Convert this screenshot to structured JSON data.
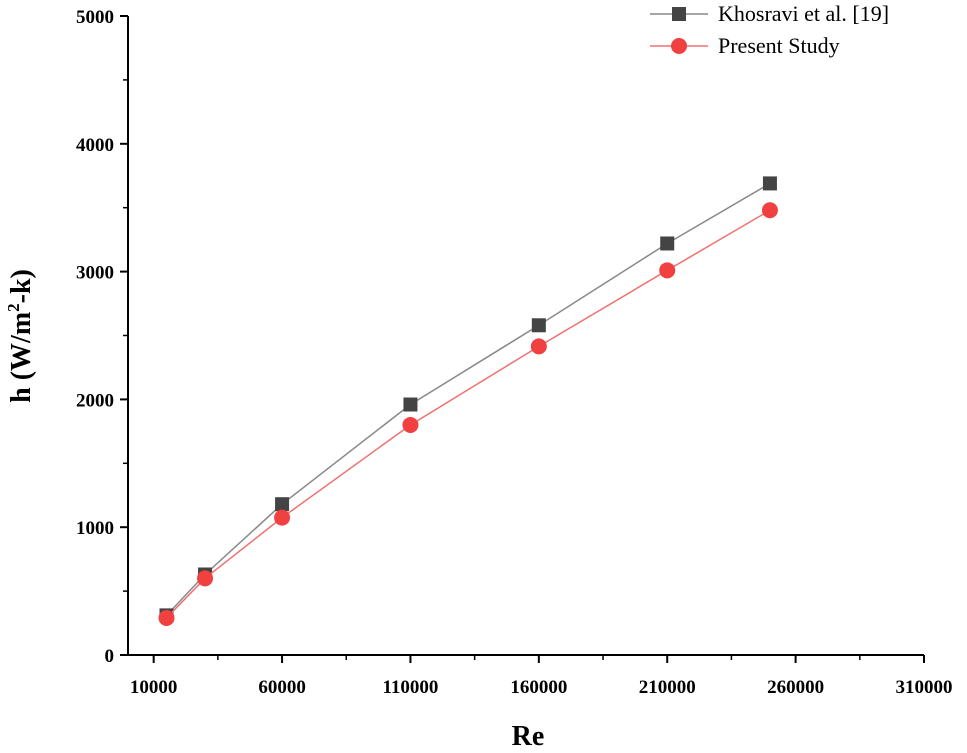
{
  "chart_data": {
    "type": "line",
    "title": "",
    "xlabel": "Re",
    "ylabel": {
      "base": "h (W/m",
      "superscript": "2",
      "suffix": "-k)"
    },
    "xlim": [
      0,
      310000
    ],
    "ylim": [
      0,
      5000
    ],
    "xticks": [
      10000,
      60000,
      110000,
      160000,
      210000,
      260000,
      310000
    ],
    "xtick_labels": [
      "10000",
      "60000",
      "110000",
      "160000",
      "210000",
      "260000",
      "310000"
    ],
    "yticks": [
      0,
      1000,
      2000,
      3000,
      4000,
      5000
    ],
    "ytick_labels": [
      "0",
      "1000",
      "2000",
      "3000",
      "4000",
      "5000"
    ],
    "grid": false,
    "legend_position": "top-right",
    "series": [
      {
        "name": "Khosravi et al. [19]",
        "marker": "square",
        "color": "#444444",
        "line_color": "#888888",
        "x": [
          15000,
          30000,
          60000,
          110000,
          160000,
          210000,
          250000
        ],
        "y": [
          310,
          630,
          1180,
          1960,
          2580,
          3220,
          3690
        ]
      },
      {
        "name": "Present Study",
        "marker": "circle",
        "color": "#f04040",
        "line_color": "#f07070",
        "x": [
          15000,
          30000,
          60000,
          110000,
          160000,
          210000,
          250000
        ],
        "y": [
          290,
          600,
          1075,
          1800,
          2415,
          3010,
          3480
        ]
      }
    ]
  }
}
